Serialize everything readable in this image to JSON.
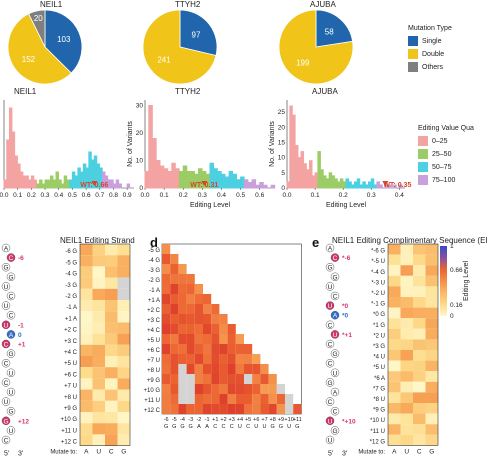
{
  "colors": {
    "single": "#2166ac",
    "double": "#f0c419",
    "others": "#7f7f7f",
    "q1": "#f4a3a3",
    "q2": "#9ccc65",
    "q3": "#4dd0e1",
    "q4": "#c9a0dc",
    "wt": "#d6452a",
    "bead_pink": "#d6336c",
    "bead_blue": "#2e6fd1"
  },
  "pies": [
    {
      "title": "NEIL1",
      "single": 103,
      "double": 152,
      "others": 20
    },
    {
      "title": "TTYH2",
      "single": 97,
      "double": 241,
      "others": 0
    },
    {
      "title": "AJUBA",
      "single": 58,
      "double": 199,
      "others": 0
    }
  ],
  "mutation_legend": {
    "title": "Mutation Type",
    "items": [
      "Single",
      "Double",
      "Others"
    ]
  },
  "histograms": [
    {
      "title": "NEIL1",
      "wt_label": "WT: 0.66",
      "wt": 0.66,
      "xlim": [
        0,
        0.95
      ],
      "xticks": [
        "0.0",
        "0.1",
        "0.2",
        "0.3",
        "0.4",
        "0.5",
        "0.6",
        "0.7",
        "0.8",
        "0.9"
      ],
      "yticks": [],
      "ylabel": ""
    },
    {
      "title": "TTYH2",
      "wt_label": "WT: 0.31",
      "wt": 0.31,
      "xlim": [
        0,
        0.68
      ],
      "xticks": [
        "0.0",
        "0.1",
        "0.2",
        "0.3",
        "0.4",
        "0.5",
        "0.6"
      ],
      "yticks": [
        "0",
        "10",
        "20",
        "30"
      ],
      "ylabel": "No. of Variants"
    },
    {
      "title": "AJUBA",
      "wt_label": "WT: 0.35",
      "wt": 0.35,
      "xlim": [
        0,
        0.42
      ],
      "xticks": [
        "0.0",
        "0.1",
        "0.2",
        "0.3",
        "0.4"
      ],
      "yticks": [
        "0",
        "5",
        "10",
        "15",
        "20",
        "25"
      ],
      "ylabel": "No. of Variants"
    }
  ],
  "histogram_xlabel": "Editing Level",
  "editing_legend": {
    "title": "Editing Value Qua",
    "items": [
      "0–25",
      "25–50",
      "50–75",
      "75–100"
    ]
  },
  "chart_data": [
    {
      "type": "pie",
      "title": "NEIL1",
      "categories": [
        "Single",
        "Double",
        "Others"
      ],
      "values": [
        103,
        152,
        20
      ]
    },
    {
      "type": "pie",
      "title": "TTYH2",
      "categories": [
        "Single",
        "Double",
        "Others"
      ],
      "values": [
        97,
        241,
        0
      ]
    },
    {
      "type": "pie",
      "title": "AJUBA",
      "categories": [
        "Single",
        "Double",
        "Others"
      ],
      "values": [
        58,
        199,
        0
      ]
    },
    {
      "type": "bar",
      "title": "NEIL1",
      "xlabel": "Editing Level",
      "ylabel": "",
      "x": [
        0.0,
        0.02,
        0.04,
        0.06,
        0.08,
        0.1,
        0.12,
        0.14,
        0.16,
        0.18,
        0.2,
        0.22,
        0.24,
        0.26,
        0.28,
        0.3,
        0.32,
        0.34,
        0.36,
        0.38,
        0.4,
        0.42,
        0.44,
        0.46,
        0.48,
        0.5,
        0.52,
        0.54,
        0.56,
        0.58,
        0.6,
        0.62,
        0.64,
        0.66,
        0.68,
        0.7,
        0.72,
        0.74,
        0.76,
        0.78,
        0.8,
        0.82,
        0.84,
        0.86,
        0.88,
        0.9
      ],
      "values": [
        2,
        12,
        20,
        14,
        8,
        6,
        4,
        3,
        3,
        2,
        3,
        2,
        1,
        2,
        1,
        2,
        2,
        3,
        2,
        4,
        2,
        1,
        3,
        2,
        2,
        4,
        3,
        5,
        4,
        6,
        5,
        9,
        7,
        8,
        6,
        5,
        4,
        3,
        2,
        2,
        1,
        2,
        1,
        0,
        0,
        1
      ],
      "ylim": [
        0,
        22
      ]
    },
    {
      "type": "bar",
      "title": "TTYH2",
      "xlabel": "Editing Level",
      "ylabel": "No. of Variants",
      "x": [
        0.0,
        0.02,
        0.04,
        0.06,
        0.08,
        0.1,
        0.12,
        0.14,
        0.16,
        0.18,
        0.2,
        0.22,
        0.24,
        0.26,
        0.28,
        0.3,
        0.32,
        0.34,
        0.36,
        0.38,
        0.4,
        0.42,
        0.44,
        0.46,
        0.48,
        0.5,
        0.52,
        0.54,
        0.56,
        0.58,
        0.6,
        0.62,
        0.64,
        0.66
      ],
      "values": [
        6,
        30,
        18,
        10,
        8,
        7,
        6,
        9,
        7,
        6,
        8,
        6,
        6,
        5,
        7,
        6,
        5,
        9,
        7,
        6,
        5,
        4,
        6,
        5,
        3,
        4,
        3,
        2,
        3,
        1,
        2,
        1,
        0,
        1
      ],
      "ylim": [
        0,
        32
      ]
    },
    {
      "type": "bar",
      "title": "AJUBA",
      "xlabel": "Editing Level",
      "ylabel": "No. of Variants",
      "x": [
        0.0,
        0.01,
        0.02,
        0.03,
        0.04,
        0.05,
        0.06,
        0.07,
        0.08,
        0.09,
        0.1,
        0.11,
        0.12,
        0.13,
        0.14,
        0.15,
        0.16,
        0.17,
        0.18,
        0.19,
        0.2,
        0.21,
        0.22,
        0.23,
        0.24,
        0.25,
        0.26,
        0.27,
        0.28,
        0.29,
        0.3,
        0.31,
        0.32,
        0.33,
        0.34,
        0.35,
        0.36,
        0.37,
        0.38,
        0.39,
        0.4
      ],
      "values": [
        2,
        27,
        24,
        14,
        10,
        12,
        8,
        6,
        9,
        4,
        5,
        12,
        6,
        4,
        3,
        5,
        4,
        3,
        2,
        3,
        2,
        3,
        2,
        1,
        2,
        3,
        1,
        2,
        1,
        2,
        3,
        1,
        2,
        1,
        0,
        1,
        1,
        0,
        1,
        0,
        1
      ],
      "ylim": [
        0,
        29
      ]
    },
    {
      "type": "heatmap",
      "title": "NEIL1 Editing Strand",
      "rows": [
        "-6 G",
        "-5 G",
        "-4 G",
        "-3 G",
        "-2 G",
        "-1 A",
        "+1 A",
        "+2 C",
        "+3 C",
        "+4 C",
        "+5 U",
        "+6 C",
        "+7 U",
        "+8 U",
        "+9 G",
        "+10 G",
        "+11 U",
        "+12 C"
      ],
      "columns": [
        "A",
        "U",
        "C",
        "G"
      ],
      "xlabel": "Mutate to:"
    },
    {
      "type": "heatmap",
      "title": "",
      "rows": [
        "-5 G",
        "-4 G",
        "-3 G",
        "-2 G",
        "-1 A",
        "+1 A",
        "+2 C",
        "+3 C",
        "+4 C",
        "+5 U",
        "+6 C",
        "+7 U",
        "+8 U",
        "+9 G",
        "+10 G",
        "+11 U",
        "+12 C"
      ],
      "columns": [
        "-6 G",
        "-5 G",
        "-4 G",
        "-3 G",
        "-2 A",
        "-1 A",
        "+1 C",
        "+2 C",
        "+3 C",
        "+4 U",
        "+5 C",
        "+6 U",
        "+7 U",
        "+8 G",
        "+9 G",
        "+10 U",
        "+11 G"
      ]
    },
    {
      "type": "heatmap",
      "title": "NEIL1 Editing Complimentary Sequence (EI",
      "rows": [
        "*-6 G",
        "*-5 U",
        "*-4 G",
        "*-3 U",
        "*-2 U",
        "*-1 G",
        "*0 G",
        "*1 G",
        "*2 U",
        "*3 G",
        "*4 U",
        "*5 U",
        "*6 A",
        "*7 G",
        "*8 U",
        "*9 G",
        "*10 U",
        "*11 U",
        "*12 G"
      ],
      "columns": [
        "A",
        "U",
        "C",
        "G"
      ],
      "xlabel": "Mutate to:"
    }
  ],
  "heat_c": {
    "rows": [
      "-6 G",
      "-5 G",
      "-4 G",
      "-3 G",
      "-2 G",
      "-1 A",
      "+1 A",
      "+2 C",
      "+3 C",
      "+4 C",
      "+5 U",
      "+6 C",
      "+7 U",
      "+8 U",
      "+9 G",
      "+10 G",
      "+11 U",
      "+12 C"
    ],
    "cols": [
      "A",
      "U",
      "C",
      "G"
    ],
    "mutate_label": "Mutate to:"
  },
  "heat_d": {
    "rows": [
      "-5 G",
      "-4 G",
      "-3 G",
      "-2 G",
      "-1 A",
      "+1 A",
      "+2 C",
      "+3 C",
      "+4 C",
      "+5 U",
      "+6 C",
      "+7 U",
      "+8 U",
      "+9 G",
      "+10 G",
      "+11 U",
      "+12 C"
    ],
    "col_top": [
      "-6",
      "-5",
      "-4",
      "-3",
      "-2",
      "-1",
      "+1",
      "+2",
      "+3",
      "+4",
      "+5",
      "+6",
      "+7",
      "+8",
      "+9",
      "+10",
      "+11"
    ],
    "col_bot": [
      "G",
      "G",
      "G",
      "G",
      "A",
      "A",
      "C",
      "C",
      "C",
      "U",
      "C",
      "U",
      "U",
      "G",
      "G",
      "U",
      "G"
    ]
  },
  "heat_e": {
    "rows": [
      "*-6 G",
      "*-5 U",
      "*-4 G",
      "*-3 U",
      "*-2 U",
      "*-1 G",
      "*0 G",
      "*1 G",
      "*2 U",
      "*3 G",
      "*4 U",
      "*5 U",
      "*6 A",
      "*7 G",
      "*8 U",
      "*9 G",
      "*10 U",
      "*11 U",
      "*12 G"
    ],
    "cols": [
      "A",
      "U",
      "C",
      "G"
    ],
    "mutate_label": "Mutate to:"
  },
  "colorbar": {
    "title": "Editing Level",
    "ticks": [
      "1",
      "0.66",
      "0.16",
      "0"
    ]
  },
  "panel_c_title": "NEIL1 Editing Strand",
  "panel_e_title": "NEIL1 Editing Complimentary Sequence (EI",
  "panel_d_letter": "d",
  "panel_e_letter": "e",
  "strand_c": {
    "letters": [
      "A",
      "C",
      "G",
      "G",
      "U",
      "C",
      "U",
      "C",
      "U",
      "A",
      "C",
      "G",
      "C",
      "U",
      "C",
      "U",
      "U",
      "G",
      "G",
      "U",
      "C"
    ],
    "labels": [
      {
        "text": "-6",
        "row": 1,
        "color": "pink"
      },
      {
        "text": "-1",
        "row": 8,
        "color": "pink"
      },
      {
        "text": "0",
        "row": 9,
        "color": "blue"
      },
      {
        "text": "+1",
        "row": 10,
        "color": "pink"
      },
      {
        "text": "+12",
        "row": 18,
        "color": "pink"
      }
    ],
    "ends": [
      "5'",
      "3'"
    ]
  },
  "strand_e": {
    "letters": [
      "A",
      "C",
      "G",
      "G",
      "U",
      "C",
      "U",
      "A",
      "C",
      "U",
      "C",
      "G",
      "C",
      "U",
      "G",
      "A",
      "C",
      "C",
      "U",
      "G",
      "U"
    ],
    "labels": [
      {
        "text": "*-6",
        "row": 1,
        "color": "pink"
      },
      {
        "text": "*0",
        "row": 6,
        "color": "pink"
      },
      {
        "text": "*0",
        "row": 7,
        "color": "blue"
      },
      {
        "text": "*+1",
        "row": 9,
        "color": "pink"
      },
      {
        "text": "*+10",
        "row": 18,
        "color": "pink"
      }
    ],
    "ends": [
      "5'",
      "3'"
    ]
  }
}
